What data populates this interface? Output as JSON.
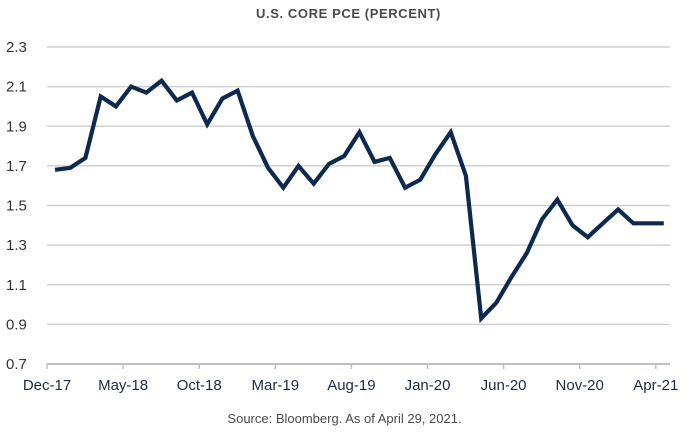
{
  "chart_data": {
    "type": "line",
    "title": "U.S. CORE PCE (PERCENT)",
    "xlabel": "",
    "ylabel": "",
    "source": "Source: Bloomberg. As of April 29, 2021.",
    "ylim": [
      0.7,
      2.3
    ],
    "yticks": [
      "2.3",
      "2.1",
      "1.9",
      "1.7",
      "1.5",
      "1.3",
      "1.1",
      "0.9",
      "0.7"
    ],
    "ytick_values": [
      2.3,
      2.1,
      1.9,
      1.7,
      1.5,
      1.3,
      1.1,
      0.9,
      0.7
    ],
    "xticks": [
      "Dec-17",
      "May-18",
      "Oct-18",
      "Mar-19",
      "Aug-19",
      "Jan-20",
      "Jun-20",
      "Nov-20",
      "Apr-21"
    ],
    "xtick_month_index": [
      0,
      5,
      10,
      15,
      20,
      25,
      30,
      35,
      40
    ],
    "grid": true,
    "legend": "none",
    "line_color": "#0d2a4e",
    "series": [
      {
        "name": "U.S. Core PCE",
        "x": [
          "Dec-17",
          "Jan-18",
          "Feb-18",
          "Mar-18",
          "Apr-18",
          "May-18",
          "Jun-18",
          "Jul-18",
          "Aug-18",
          "Sep-18",
          "Oct-18",
          "Nov-18",
          "Dec-18",
          "Jan-19",
          "Feb-19",
          "Mar-19",
          "Apr-19",
          "May-19",
          "Jun-19",
          "Jul-19",
          "Aug-19",
          "Sep-19",
          "Oct-19",
          "Nov-19",
          "Dec-19",
          "Jan-20",
          "Feb-20",
          "Mar-20",
          "Apr-20",
          "May-20",
          "Jun-20",
          "Jul-20",
          "Aug-20",
          "Sep-20",
          "Oct-20",
          "Nov-20",
          "Dec-20",
          "Jan-21",
          "Feb-21",
          "Mar-21",
          "Apr-21"
        ],
        "values": [
          1.68,
          1.69,
          1.74,
          2.05,
          2.0,
          2.1,
          2.07,
          2.13,
          2.03,
          2.07,
          1.91,
          2.04,
          2.08,
          1.85,
          1.69,
          1.59,
          1.7,
          1.61,
          1.71,
          1.75,
          1.87,
          1.72,
          1.74,
          1.59,
          1.63,
          1.76,
          1.87,
          1.65,
          0.93,
          1.01,
          1.14,
          1.26,
          1.43,
          1.53,
          1.4,
          1.34,
          1.41,
          1.48,
          1.41,
          1.41,
          1.41
        ]
      }
    ]
  }
}
